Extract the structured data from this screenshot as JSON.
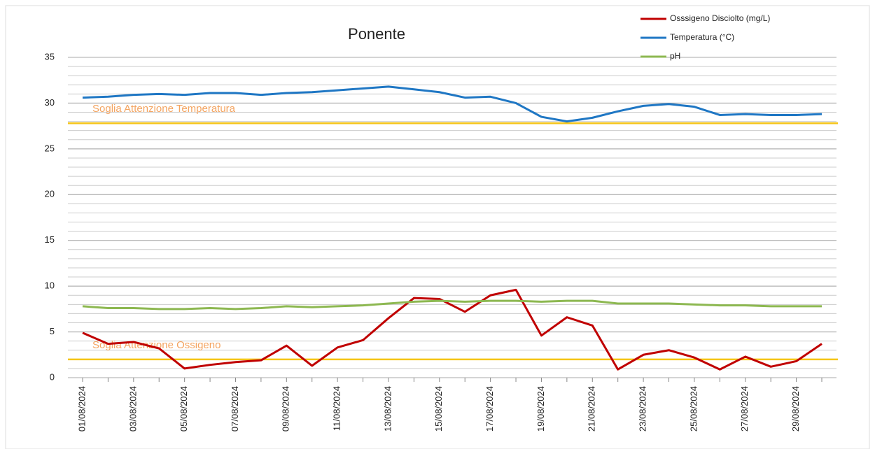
{
  "chart_data": {
    "type": "line",
    "title": "Ponente",
    "categories": [
      "01/08/2024",
      null,
      "03/08/2024",
      null,
      "05/08/2024",
      null,
      "07/08/2024",
      null,
      "09/08/2024",
      null,
      "11/08/2024",
      null,
      "13/08/2024",
      null,
      "15/08/2024",
      null,
      "17/08/2024",
      null,
      "19/08/2024",
      null,
      "21/08/2024",
      null,
      "23/08/2024",
      null,
      "25/08/2024",
      null,
      "27/08/2024",
      null,
      "29/08/2024",
      null
    ],
    "series": [
      {
        "name": "Osssigeno Disciolto (mg/L)",
        "color": "#c00000",
        "values": [
          4.9,
          3.7,
          3.9,
          3.2,
          1.0,
          1.4,
          1.7,
          1.9,
          3.5,
          1.3,
          3.3,
          4.1,
          6.5,
          8.7,
          8.6,
          7.2,
          9.0,
          9.6,
          4.6,
          6.6,
          5.7,
          0.9,
          2.5,
          3.0,
          2.2,
          0.9,
          2.3,
          1.2,
          1.8,
          3.7
        ]
      },
      {
        "name": "Temperatura (°C)",
        "color": "#1f77c4",
        "values": [
          30.6,
          30.7,
          30.9,
          31.0,
          30.9,
          31.1,
          31.1,
          30.9,
          31.1,
          31.2,
          31.4,
          31.6,
          31.8,
          31.5,
          31.2,
          30.6,
          30.7,
          30.0,
          28.5,
          28.0,
          28.4,
          29.1,
          29.7,
          29.9,
          29.6,
          28.7,
          28.8,
          28.7,
          28.7,
          28.8
        ]
      },
      {
        "name": "pH",
        "color": "#8db851",
        "values": [
          7.8,
          7.6,
          7.6,
          7.5,
          7.5,
          7.6,
          7.5,
          7.6,
          7.8,
          7.7,
          7.8,
          7.9,
          8.1,
          8.3,
          8.4,
          8.3,
          8.4,
          8.4,
          8.3,
          8.4,
          8.4,
          8.1,
          8.1,
          8.1,
          8.0,
          7.9,
          7.9,
          7.8,
          7.8,
          7.8
        ]
      }
    ],
    "thresholds": [
      {
        "label": "Soglia Attenzione Temperatura",
        "value": 27.8,
        "color": "#f5c518",
        "label_color": "#f4a460"
      },
      {
        "label": "Soglia Attenzione Ossigeno",
        "value": 2,
        "color": "#f5c518",
        "label_color": "#f4a460"
      }
    ],
    "ylim": [
      0,
      35
    ],
    "yticks": [
      0,
      5,
      10,
      15,
      20,
      25,
      30,
      35
    ],
    "grid": true,
    "minor_grid": true,
    "legend": "top-right"
  }
}
